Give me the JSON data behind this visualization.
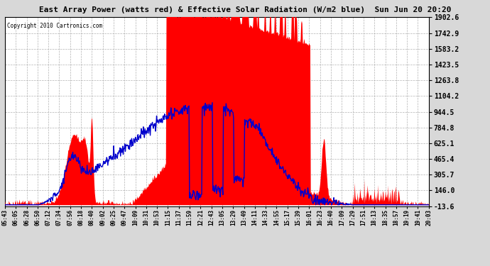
{
  "title": "East Array Power (watts red) & Effective Solar Radiation (W/m2 blue)  Sun Jun 20 20:20",
  "copyright": "Copyright 2010 Cartronics.com",
  "ylabel_right_ticks": [
    1902.6,
    1742.9,
    1583.2,
    1423.5,
    1263.8,
    1104.2,
    944.5,
    784.8,
    625.1,
    465.4,
    305.7,
    146.0,
    -13.6
  ],
  "ymin": -13.6,
  "ymax": 1902.6,
  "background_color": "#d8d8d8",
  "plot_bg_color": "#ffffff",
  "title_color": "#000000",
  "red_color": "#ff0000",
  "blue_color": "#0000cc",
  "grid_color": "#aaaaaa",
  "copyright_color": "#000000",
  "x_tick_labels": [
    "05:43",
    "06:05",
    "06:28",
    "06:50",
    "07:12",
    "07:34",
    "07:56",
    "08:18",
    "08:40",
    "09:02",
    "09:25",
    "09:47",
    "10:09",
    "10:31",
    "10:53",
    "11:15",
    "11:37",
    "11:59",
    "12:21",
    "12:43",
    "13:05",
    "13:29",
    "13:49",
    "14:11",
    "14:33",
    "14:55",
    "15:17",
    "15:39",
    "16:01",
    "16:23",
    "16:40",
    "17:09",
    "17:29",
    "17:51",
    "18:13",
    "18:35",
    "18:57",
    "19:19",
    "19:41",
    "20:03"
  ]
}
